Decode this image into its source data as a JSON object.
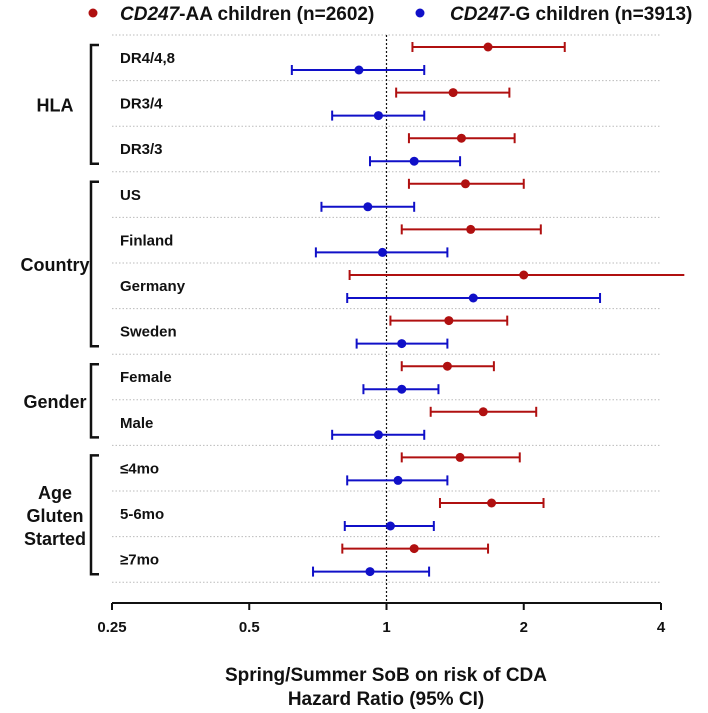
{
  "chart_data": {
    "type": "forest",
    "xscale": "log2",
    "xlim": [
      0.25,
      4
    ],
    "xticks": [
      "0.25",
      "0.5",
      "1",
      "2",
      "4"
    ],
    "xtick_values": [
      0.25,
      0.5,
      1,
      2,
      4
    ],
    "reference_line": 1,
    "xlabel_line1": "Spring/Summer SoB on risk of CDA",
    "xlabel_line2": "Hazard Ratio (95% CI)",
    "legend": {
      "placement": "top",
      "entries": [
        {
          "gene": "CD247",
          "text": "-AA children (n=2602)",
          "color": "#b01010"
        },
        {
          "gene": "CD247",
          "text": "-G children (n=3913)",
          "color": "#1010c8"
        }
      ]
    },
    "groups": [
      {
        "name": "HLA",
        "lines": [
          "HLA"
        ],
        "rows": [
          0,
          2
        ]
      },
      {
        "name": "Country",
        "lines": [
          "Country"
        ],
        "rows": [
          3,
          6
        ]
      },
      {
        "name": "Gender",
        "lines": [
          "Gender"
        ],
        "rows": [
          7,
          8
        ]
      },
      {
        "name": "Age Gluten Started",
        "lines": [
          "Age",
          "Gluten",
          "Started"
        ],
        "rows": [
          9,
          11
        ]
      }
    ],
    "rows": [
      {
        "label": "DR4/4,8",
        "AA": [
          1.67,
          1.14,
          2.46
        ],
        "G": [
          0.87,
          0.62,
          1.21
        ]
      },
      {
        "label": "DR3/4",
        "AA": [
          1.4,
          1.05,
          1.86
        ],
        "G": [
          0.96,
          0.76,
          1.21
        ]
      },
      {
        "label": "DR3/3",
        "AA": [
          1.46,
          1.12,
          1.91
        ],
        "G": [
          1.15,
          0.92,
          1.45
        ]
      },
      {
        "label": "US",
        "AA": [
          1.49,
          1.12,
          2.0
        ],
        "G": [
          0.91,
          0.72,
          1.15
        ]
      },
      {
        "label": "Finland",
        "AA": [
          1.53,
          1.08,
          2.18
        ],
        "G": [
          0.98,
          0.7,
          1.36
        ]
      },
      {
        "label": "Germany",
        "AA": [
          2.0,
          0.83,
          4.5
        ],
        "G": [
          1.55,
          0.82,
          2.94
        ]
      },
      {
        "label": "Sweden",
        "AA": [
          1.37,
          1.02,
          1.84
        ],
        "G": [
          1.08,
          0.86,
          1.36
        ]
      },
      {
        "label": "Female",
        "AA": [
          1.36,
          1.08,
          1.72
        ],
        "G": [
          1.08,
          0.89,
          1.3
        ]
      },
      {
        "label": "Male",
        "AA": [
          1.63,
          1.25,
          2.13
        ],
        "G": [
          0.96,
          0.76,
          1.21
        ]
      },
      {
        "label": "≤4mo",
        "AA": [
          1.45,
          1.08,
          1.96
        ],
        "G": [
          1.06,
          0.82,
          1.36
        ]
      },
      {
        "label": "5-6mo",
        "AA": [
          1.7,
          1.31,
          2.21
        ],
        "G": [
          1.02,
          0.81,
          1.27
        ]
      },
      {
        "label": "≥7mo",
        "AA": [
          1.15,
          0.8,
          1.67
        ],
        "G": [
          0.92,
          0.69,
          1.24
        ]
      }
    ]
  }
}
